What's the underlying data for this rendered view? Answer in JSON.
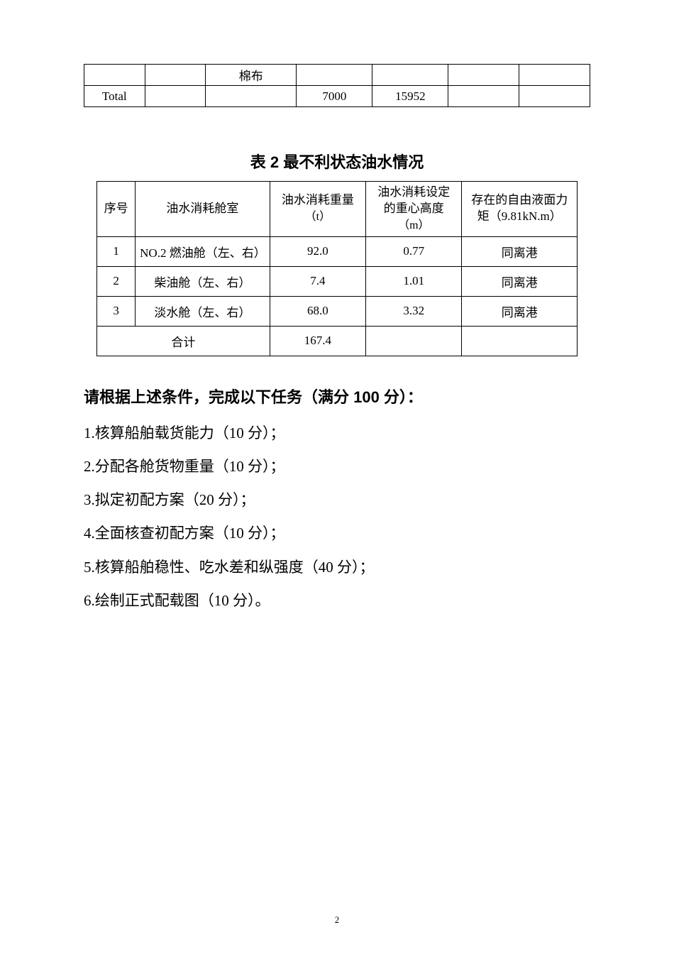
{
  "table1": {
    "row_continuation": {
      "c2": "棉布"
    },
    "row_total": {
      "c0": "Total",
      "c3": "7000",
      "c4": "15952"
    }
  },
  "caption2": "表 2 最不利状态油水情况",
  "table2": {
    "headers": {
      "h0": "序号",
      "h1": "油水消耗舱室",
      "h2": "油水消耗重量",
      "h2_unit": "（t）",
      "h3_l1": "油水消耗设定",
      "h3_l2": "的重心高度",
      "h3_unit": "（m）",
      "h4_l1": "存在的自由液面力",
      "h4_l2": "矩（9.81kN.m）"
    },
    "rows": [
      {
        "no": "1",
        "name": "NO.2 燃油舱（左、右）",
        "w": "92.0",
        "z": "0.77",
        "note": "同离港"
      },
      {
        "no": "2",
        "name": "柴油舱（左、右）",
        "w": "7.4",
        "z": "1.01",
        "note": "同离港"
      },
      {
        "no": "3",
        "name": "淡水舱（左、右）",
        "w": "68.0",
        "z": "3.32",
        "note": "同离港"
      }
    ],
    "total_label": "合计",
    "total_w": "167.4"
  },
  "prompt": "请根据上述条件，完成以下任务（满分 100 分）：",
  "tasks": [
    "1.核算船舶载货能力（10 分）；",
    "2.分配各舱货物重量（10 分）；",
    "3.拟定初配方案（20 分）；",
    "4.全面核查初配方案（10 分）；",
    "5.核算船舶稳性、吃水差和纵强度（40 分）；",
    "6.绘制正式配载图（10 分）。"
  ],
  "page_number": "2"
}
